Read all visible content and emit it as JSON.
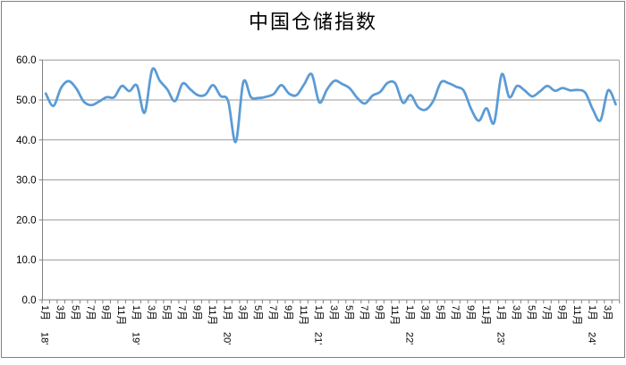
{
  "chart_data": {
    "type": "line",
    "title": "中国仓储指数",
    "series": [
      {
        "name": "中国仓储指数",
        "values": [
          51.6,
          48.5,
          53.0,
          54.7,
          52.9,
          49.6,
          48.7,
          49.6,
          50.7,
          50.7,
          53.5,
          52.2,
          53.6,
          46.8,
          57.6,
          54.8,
          52.6,
          49.7,
          54.1,
          52.7,
          51.2,
          51.3,
          53.7,
          51.0,
          49.7,
          39.5,
          54.5,
          50.7,
          50.5,
          50.8,
          51.5,
          53.7,
          51.6,
          51.2,
          53.9,
          56.4,
          49.4,
          52.6,
          54.8,
          54.0,
          52.9,
          50.5,
          49.1,
          51.1,
          52.0,
          54.3,
          54.1,
          49.3,
          51.2,
          48.2,
          47.6,
          49.8,
          54.4,
          54.2,
          53.3,
          52.3,
          47.6,
          44.8,
          47.9,
          44.3,
          56.4,
          50.7,
          53.5,
          52.4,
          50.9,
          52.1,
          53.5,
          52.3,
          53.0,
          52.4,
          52.5,
          51.8,
          47.6,
          44.9,
          52.4,
          48.9
        ]
      }
    ],
    "x_range": {
      "start": "2018-01",
      "end": "2024-04",
      "freq": "monthly",
      "points": 76
    },
    "x_tick_labels": [
      "1月",
      "3月",
      "5月",
      "7月",
      "9月",
      "11月",
      "1月",
      "3月",
      "5月",
      "7月",
      "9月",
      "11月",
      "1月",
      "3月",
      "5月",
      "7月",
      "9月",
      "11月",
      "1月",
      "3月",
      "5月",
      "7月",
      "9月",
      "11月",
      "1月",
      "3月",
      "5月",
      "7月",
      "9月",
      "11月",
      "1月",
      "3月",
      "5月",
      "7月",
      "9月",
      "11月",
      "1月",
      "3月"
    ],
    "x_tick_every_n_months": 2,
    "year_labels": [
      "18'",
      "19'",
      "20'",
      "21'",
      "22'",
      "23'",
      "24'"
    ],
    "y_ticks": [
      "0.0",
      "10.0",
      "20.0",
      "30.0",
      "40.0",
      "50.0",
      "60.0"
    ],
    "ylim": [
      0,
      60
    ],
    "y_step": 10,
    "grid": "horizontal",
    "legend": "none",
    "xlabel": "",
    "ylabel": ""
  },
  "colors": {
    "line": "#5B9BD5",
    "gridline": "#999999",
    "axis": "#808080",
    "tick": "#808080",
    "text": "#000000",
    "plot_right_border": "#A6A6A6",
    "outer_border": "#808080",
    "background": "#FFFFFF"
  }
}
